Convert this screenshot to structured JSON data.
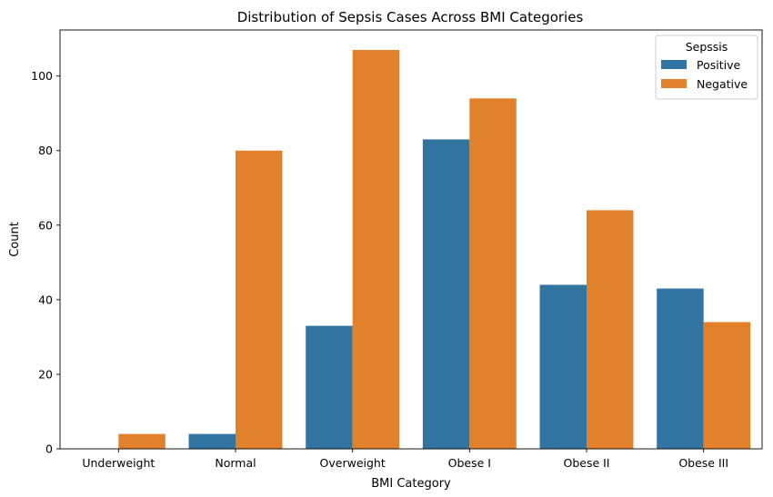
{
  "chart_data": {
    "type": "bar",
    "title": "Distribution of Sepsis Cases Across BMI Categories",
    "xlabel": "BMI Category",
    "ylabel": "Count",
    "categories": [
      "Underweight",
      "Normal",
      "Overweight",
      "Obese I",
      "Obese II",
      "Obese III"
    ],
    "series": [
      {
        "name": "Positive",
        "values": [
          0,
          4,
          33,
          83,
          44,
          43
        ],
        "color": "#3274a1"
      },
      {
        "name": "Negative",
        "values": [
          4,
          80,
          107,
          94,
          64,
          34
        ],
        "color": "#e1812c"
      }
    ],
    "ylim": [
      0,
      112.35
    ],
    "yticks": [
      0,
      20,
      40,
      60,
      80,
      100
    ],
    "grid": false,
    "legend": {
      "title": "Sepssis",
      "placement": "top-right"
    }
  }
}
